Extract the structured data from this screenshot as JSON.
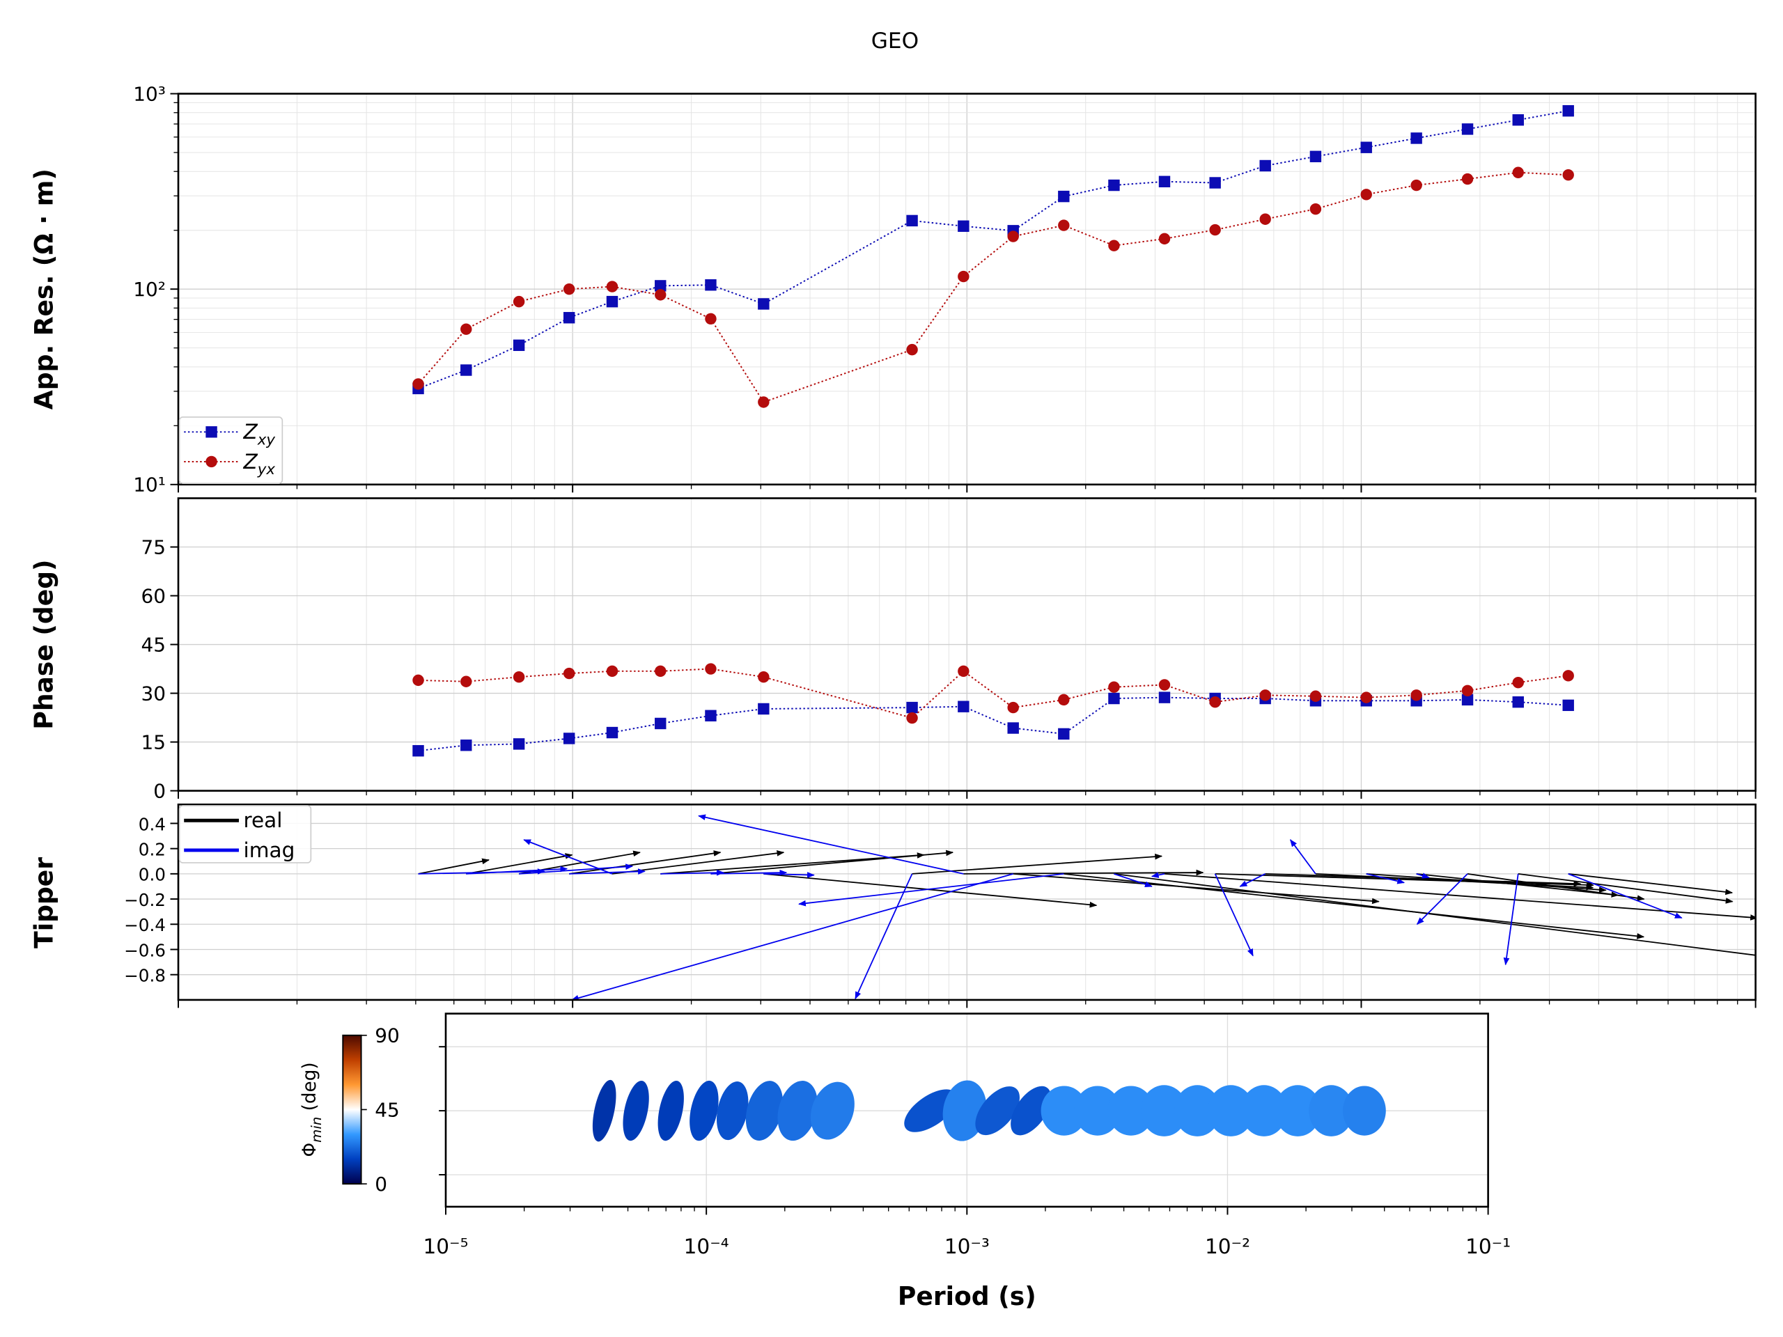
{
  "chart_data": {
    "type": "mt_response",
    "title": "GEO",
    "xlabel": "Period (s)",
    "xlim": [
      1e-05,
      0.1
    ],
    "xticks": [
      {
        "value": 1e-05,
        "label": "10⁻⁵"
      },
      {
        "value": 0.0001,
        "label": "10⁻⁴"
      },
      {
        "value": 0.001,
        "label": "10⁻³"
      },
      {
        "value": 0.01,
        "label": "10⁻²"
      },
      {
        "value": 0.1,
        "label": "10⁻¹"
      }
    ],
    "log_x": true,
    "grid": true,
    "x": [
      4.06e-05,
      5.37e-05,
      7.31e-05,
      9.8e-05,
      0.000126,
      0.000167,
      0.000224,
      0.000305,
      0.000726,
      0.00098,
      0.00131,
      0.00176,
      0.00236,
      0.00317,
      0.00426,
      0.00571,
      0.00766,
      0.0103,
      0.0138,
      0.0186,
      0.025,
      0.0335
    ],
    "resistivity": {
      "ylabel": "App. Res. (Ω · m)",
      "log_y": true,
      "ylim": [
        10,
        1000
      ],
      "yticks": [
        {
          "value": 10,
          "label": "10¹"
        },
        {
          "value": 100,
          "label": "10²"
        },
        {
          "value": 1000,
          "label": "10³"
        }
      ],
      "legend": "lower left",
      "series": [
        {
          "name": "Zxy",
          "color": "#0c0cb4",
          "marker": "square",
          "values": [
            31,
            38.5,
            51.6,
            71.4,
            86.3,
            104,
            105,
            84,
            224,
            210,
            199,
            298,
            340,
            355,
            350,
            428,
            477,
            531,
            592,
            659,
            734,
            817
          ]
        },
        {
          "name": "Zyx",
          "color": "#b40c0c",
          "marker": "circle",
          "values": [
            32.7,
            62.4,
            86.3,
            100,
            103,
            93.5,
            70.5,
            26.4,
            49,
            116,
            186,
            212,
            167,
            181,
            201,
            228,
            257,
            305,
            340,
            366,
            395,
            384
          ]
        }
      ]
    },
    "phase": {
      "ylabel": "Phase (deg)",
      "ylim": [
        0,
        90
      ],
      "yticks": [
        0,
        15,
        30,
        45,
        60,
        75
      ],
      "series": [
        {
          "name": "Zxy",
          "color": "#0c0cb4",
          "marker": "square",
          "values": [
            12.3,
            14.0,
            14.4,
            16.1,
            17.9,
            20.7,
            23.1,
            25.2,
            25.6,
            25.9,
            19.3,
            17.5,
            28.4,
            28.7,
            28.4,
            28.4,
            27.7,
            27.7,
            27.7,
            28.0,
            27.3,
            26.3
          ]
        },
        {
          "name": "Zyx",
          "color": "#b40c0c",
          "marker": "circle",
          "values": [
            34.0,
            33.6,
            35.0,
            36.1,
            36.8,
            36.8,
            37.5,
            35.0,
            22.4,
            36.8,
            25.6,
            28.0,
            31.9,
            32.6,
            27.3,
            29.4,
            29.1,
            28.7,
            29.4,
            30.8,
            33.3,
            35.4
          ]
        }
      ]
    },
    "tipper": {
      "ylabel": "Tipper",
      "ylim": [
        -1.0,
        0.55
      ],
      "yticks": [
        {
          "value": -0.8,
          "label": "−0.8"
        },
        {
          "value": -0.6,
          "label": "−0.6"
        },
        {
          "value": -0.4,
          "label": "−0.4"
        },
        {
          "value": -0.2,
          "label": "−0.2"
        },
        {
          "value": 0,
          "label": "0.0"
        },
        0.2,
        0.4
      ],
      "legend": "upper left",
      "series": [
        {
          "name": "real",
          "color": "#000000",
          "tx": [
            0.56,
            0.84,
            0.96,
            1.2,
            1.36,
            2.09,
            1.92,
            2.64,
            1.98,
            1.9,
            2.9,
            4.6,
            5.2,
            4.7,
            3.0,
            2.5,
            2.2,
            1.9,
            1.6,
            1.4,
            1.7,
            1.3
          ],
          "ty": [
            0.11,
            0.15,
            0.17,
            0.17,
            0.17,
            0.15,
            0.17,
            -0.25,
            0.14,
            0.01,
            -0.22,
            -0.5,
            -0.66,
            -0.35,
            -0.09,
            -0.08,
            -0.11,
            -0.13,
            -0.17,
            -0.2,
            -0.22,
            -0.15
          ]
        },
        {
          "name": "imag",
          "color": "#0000ee",
          "tx": [
            1.0,
            0.8,
            0.9,
            0.6,
            -0.7,
            0.5,
            0.6,
            0.4,
            -0.45,
            -2.1,
            -3.5,
            -2.1,
            0.3,
            -0.1,
            0.3,
            -0.2,
            -0.2,
            0.3,
            0.1,
            -0.4,
            -0.1,
            0.9
          ],
          "ty": [
            0.02,
            0.04,
            0.06,
            0.02,
            0.27,
            0.01,
            0.01,
            -0.01,
            -0.99,
            0.46,
            -1.0,
            -0.24,
            -0.1,
            -0.02,
            -0.65,
            -0.1,
            0.27,
            -0.07,
            -0.03,
            -0.4,
            -0.72,
            -0.35
          ]
        }
      ]
    },
    "phase_tensor": {
      "phimin": [
        12,
        14,
        14,
        16,
        18,
        21,
        23,
        25,
        18,
        26,
        19,
        18,
        28,
        28,
        28,
        28,
        28,
        28,
        28,
        28,
        27,
        26
      ],
      "phimax": [
        38,
        37,
        37,
        37,
        36,
        37,
        37,
        36,
        37,
        37,
        35,
        34,
        30,
        30,
        30,
        31,
        31,
        31,
        31,
        31,
        31,
        30
      ],
      "azimuth": [
        12,
        12,
        12,
        12,
        12,
        15,
        15,
        20,
        55,
        10,
        40,
        35,
        0,
        0,
        0,
        0,
        0,
        0,
        0,
        0,
        0,
        0
      ],
      "colorbar_label": [
        "Φ",
        "min",
        " (deg)"
      ],
      "clim": [
        0,
        90
      ],
      "cticks": [
        0,
        45,
        90
      ],
      "colormap": [
        {
          "value": 0,
          "color": "#00004d"
        },
        {
          "value": 15,
          "color": "#0040c0"
        },
        {
          "value": 30,
          "color": "#3399ff"
        },
        {
          "value": 45,
          "color": "#ffffff"
        },
        {
          "value": 60,
          "color": "#ff9933"
        },
        {
          "value": 75,
          "color": "#c04000"
        },
        {
          "value": 90,
          "color": "#4d0a00"
        }
      ]
    }
  }
}
